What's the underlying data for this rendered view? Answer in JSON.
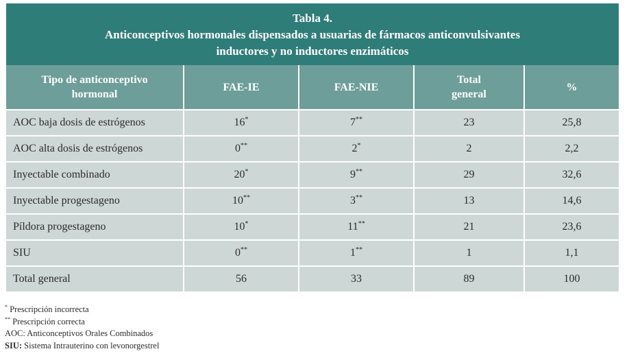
{
  "title": {
    "line1": "Tabla 4.",
    "line2": "Anticonceptivos hormonales dispensados a usuarias de fármacos anticonvulsivantes",
    "line3": "inductores y no inductores enzimáticos"
  },
  "headers": {
    "col1_line1": "Tipo de anticonceptivo",
    "col1_line2": "hormonal",
    "col2": "FAE-IE",
    "col3": "FAE-NIE",
    "col4_line1": "Total",
    "col4_line2": "general",
    "col5": "%"
  },
  "rows": [
    {
      "label": "AOC baja dosis de estrógenos",
      "fae_ie": "16",
      "fae_ie_mark": "*",
      "fae_nie": "7",
      "fae_nie_mark": "**",
      "total": "23",
      "pct": "25,8"
    },
    {
      "label": "AOC alta dosis de estrógenos",
      "fae_ie": "0",
      "fae_ie_mark": "**",
      "fae_nie": "2",
      "fae_nie_mark": "*",
      "total": "2",
      "pct": "2,2"
    },
    {
      "label": "Inyectable combinado",
      "fae_ie": "20",
      "fae_ie_mark": "*",
      "fae_nie": "9",
      "fae_nie_mark": "**",
      "total": "29",
      "pct": "32,6"
    },
    {
      "label": "Inyectable progestageno",
      "fae_ie": "10",
      "fae_ie_mark": "**",
      "fae_nie": "3",
      "fae_nie_mark": "**",
      "total": "13",
      "pct": "14,6"
    },
    {
      "label": "Píldora progestageno",
      "fae_ie": "10",
      "fae_ie_mark": "*",
      "fae_nie": "11",
      "fae_nie_mark": "**",
      "total": "21",
      "pct": "23,6"
    },
    {
      "label": "SIU",
      "fae_ie": "0",
      "fae_ie_mark": "**",
      "fae_nie": "1",
      "fae_nie_mark": "**",
      "total": "1",
      "pct": "1,1"
    },
    {
      "label": "Total general",
      "fae_ie": "56",
      "fae_ie_mark": "",
      "fae_nie": "33",
      "fae_nie_mark": "",
      "total": "89",
      "pct": "100"
    }
  ],
  "notes": {
    "n1_mark": "*",
    "n1": " Prescripción incorrecta",
    "n2_mark": "**",
    "n2": " Prescripción correcta",
    "n3": "AOC: Anticonceptivos Orales Combinados",
    "n4_bold": "SIU:",
    "n4": " Sistema Intrauterino con levonorgestrel"
  }
}
